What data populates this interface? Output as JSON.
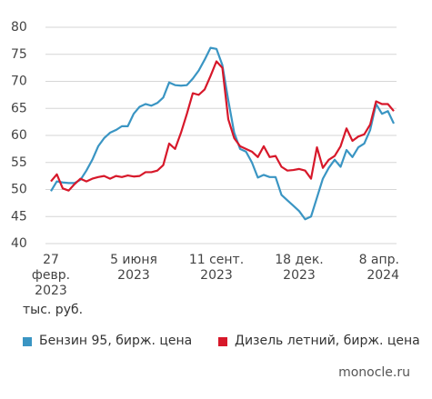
{
  "chart_data": {
    "type": "line",
    "categories": [
      "27 февр. 2023",
      null,
      null,
      null,
      null,
      null,
      null,
      null,
      null,
      null,
      null,
      null,
      null,
      null,
      "5 июня 2023",
      null,
      null,
      null,
      null,
      null,
      null,
      null,
      null,
      null,
      null,
      null,
      null,
      null,
      "11 сент. 2023",
      null,
      null,
      null,
      null,
      null,
      null,
      null,
      null,
      null,
      null,
      null,
      null,
      null,
      "18 дек. 2023",
      null,
      null,
      null,
      null,
      null,
      null,
      null,
      null,
      null,
      null,
      null,
      null,
      null,
      null,
      null,
      "8 апр. 2024"
    ],
    "series": [
      {
        "name": "Бензин 95, бирж. цена",
        "color": "#3a95c3",
        "values": [
          49.7,
          51.5,
          51.3,
          51.2,
          51.2,
          51.8,
          53.5,
          55.5,
          58,
          59.5,
          60.5,
          61,
          61.7,
          61.7,
          64,
          65.3,
          65.8,
          65.5,
          66,
          67,
          69.8,
          69.3,
          69.2,
          69.3,
          70.5,
          72,
          74,
          76.2,
          76,
          73,
          66.5,
          60.5,
          57.5,
          57,
          55,
          52.2,
          52.7,
          52.3,
          52.3,
          49,
          48,
          47,
          46,
          44.5,
          45,
          48.5,
          52,
          54,
          55.5,
          54.2,
          57.3,
          56,
          57.8,
          58.5,
          61,
          65.8,
          64,
          64.5,
          62.2
        ]
      },
      {
        "name": "Дизель летний, бирж. цена",
        "color": "#d7182a",
        "values": [
          51.5,
          52.8,
          50.2,
          49.8,
          51,
          52,
          51.5,
          52,
          52.3,
          52.5,
          52,
          52.5,
          52.3,
          52.6,
          52.4,
          52.5,
          53.2,
          53.2,
          53.5,
          54.5,
          58.5,
          57.5,
          60.5,
          64,
          67.8,
          67.5,
          68.5,
          71,
          73.7,
          72.5,
          63,
          59.5,
          58,
          57.5,
          57,
          56,
          58,
          56,
          56.2,
          54.2,
          53.5,
          53.6,
          53.8,
          53.5,
          52,
          57.8,
          54,
          55.5,
          56.2,
          58,
          61.3,
          59,
          59.8,
          60.2,
          62,
          66.3,
          65.8,
          65.8,
          64.5
        ]
      }
    ],
    "ylim": [
      40,
      80
    ],
    "yticks": [
      40,
      45,
      50,
      55,
      60,
      65,
      70,
      75,
      80
    ],
    "grid": true,
    "unit_label": "тыс. руб.",
    "source": "monocle.ru"
  }
}
